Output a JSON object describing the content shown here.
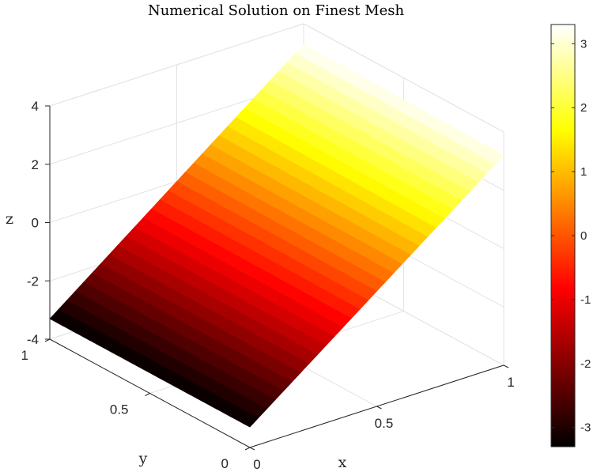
{
  "chart_data": {
    "type": "surface",
    "title": "Numerical Solution on Finest Mesh",
    "xlabel": "x",
    "ylabel": "y",
    "zlabel": "z",
    "xlim": [
      0,
      1
    ],
    "ylim": [
      0,
      1
    ],
    "zlim": [
      -4,
      4
    ],
    "x_ticks": [
      "0",
      "0.5",
      "1"
    ],
    "y_ticks": [
      "0",
      "0.5",
      "1"
    ],
    "z_ticks": [
      "-4",
      "-2",
      "0",
      "2",
      "4"
    ],
    "colormap": "hot",
    "clim": [
      -3.3,
      3.3
    ],
    "colorbar_ticks": [
      "-3",
      "-2",
      "-1",
      "0",
      "1",
      "2",
      "3"
    ],
    "grid": true,
    "surface_corners": [
      {
        "x": 0,
        "y": 0,
        "z": -3.3
      },
      {
        "x": 1,
        "y": 0,
        "z": 3.2
      },
      {
        "x": 0,
        "y": 1,
        "z": -3.3
      },
      {
        "x": 1,
        "y": 1,
        "z": 3.3
      }
    ]
  }
}
